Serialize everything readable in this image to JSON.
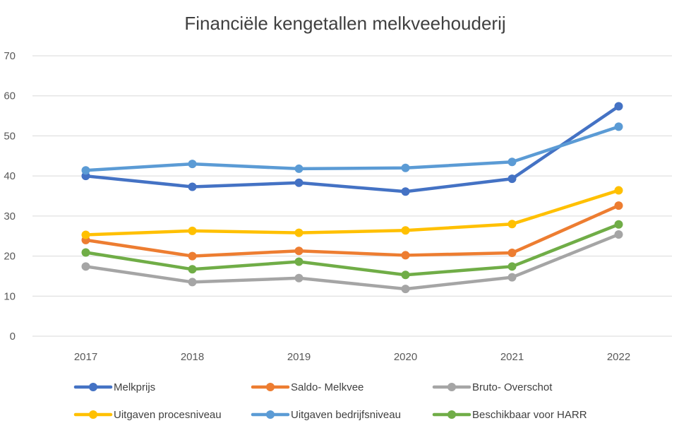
{
  "chart_data": {
    "type": "line",
    "title": "Financiële kengetallen melkveehouderij",
    "xlabel": "",
    "ylabel": "",
    "categories": [
      "2017",
      "2018",
      "2019",
      "2020",
      "2021",
      "2022"
    ],
    "ylim": [
      0,
      70
    ],
    "yticks": [
      0,
      10,
      20,
      30,
      40,
      50,
      60,
      70
    ],
    "grid": true,
    "legend_position": "bottom",
    "series": [
      {
        "name": "Melkprijs",
        "color": "#4472c4",
        "values": [
          40.0,
          37.3,
          38.3,
          36.1,
          39.3,
          57.4
        ]
      },
      {
        "name": "Saldo- Melkvee",
        "color": "#ed7d31",
        "values": [
          24.0,
          20.0,
          21.3,
          20.2,
          20.8,
          32.6
        ]
      },
      {
        "name": "Bruto- Overschot",
        "color": "#a5a5a5",
        "values": [
          17.4,
          13.5,
          14.5,
          11.8,
          14.7,
          25.4
        ]
      },
      {
        "name": "Uitgaven procesniveau",
        "color": "#ffc000",
        "values": [
          25.3,
          26.3,
          25.8,
          26.4,
          28.0,
          36.4
        ]
      },
      {
        "name": "Uitgaven bedrijfsniveau",
        "color": "#5b9bd5",
        "values": [
          41.4,
          43.0,
          41.8,
          42.0,
          43.5,
          52.3
        ]
      },
      {
        "name": "Beschikbaar voor HARR",
        "color": "#70ad47",
        "values": [
          20.9,
          16.7,
          18.6,
          15.3,
          17.4,
          27.9
        ]
      }
    ]
  }
}
